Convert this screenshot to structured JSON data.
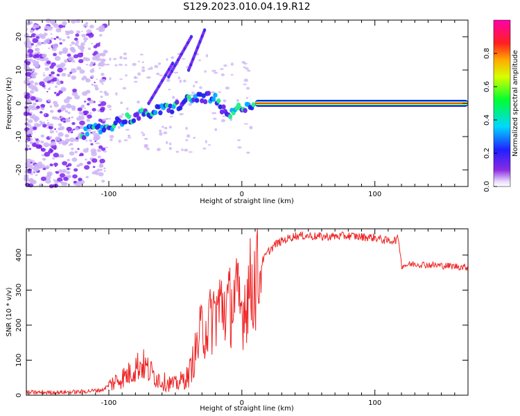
{
  "figure": {
    "title": "S129.2023.010.04.19.R12"
  },
  "colors": {
    "snr_line": "#ee2222",
    "spec_scatter": "#7b22ee",
    "spec_scatter_light": "#cdb4f5",
    "trace_ridge": "#ee1122",
    "axis": "#000000",
    "background": "#ffffff"
  },
  "chart_data": [
    {
      "type": "heatmap",
      "title": "",
      "xlabel": "Height of straight line (km)",
      "ylabel": "Frequency (Hz)",
      "xlim": [
        -162,
        170
      ],
      "ylim": [
        -25,
        25
      ],
      "x_ticks": [
        -100,
        0,
        100
      ],
      "y_ticks": [
        -20,
        -10,
        0,
        10,
        20
      ],
      "colorbar": {
        "label": "Normalized spectral amplitude",
        "range": [
          0.0,
          1.0
        ],
        "ticks": [
          0.0,
          0.2,
          0.4,
          0.6,
          0.8
        ],
        "colormap": "rainbow (violet-blue-cyan-green-yellow-red-magenta)"
      },
      "trace": {
        "x": [
          -120,
          -110,
          -100,
          -90,
          -80,
          -70,
          -60,
          -50,
          -40,
          -30,
          -20,
          -15,
          -10,
          0,
          10,
          20,
          50,
          100,
          150,
          170
        ],
        "y": [
          -9,
          -8,
          -7,
          -5,
          -4,
          -3,
          -2,
          -1,
          1,
          2,
          1,
          -2,
          -4,
          -1,
          0,
          0,
          0,
          0,
          0,
          0
        ]
      },
      "grid": false
    },
    {
      "type": "line",
      "title": "",
      "xlabel": "Height of straight line (km)",
      "ylabel": "SNR (10 * v/v)",
      "xlim": [
        -162,
        170
      ],
      "ylim": [
        0,
        475
      ],
      "x_ticks": [
        -100,
        0,
        100
      ],
      "y_ticks": [
        0,
        100,
        200,
        300,
        400
      ],
      "x": [
        -162,
        -140,
        -120,
        -105,
        -95,
        -85,
        -80,
        -75,
        -70,
        -60,
        -50,
        -40,
        -35,
        -30,
        -25,
        -20,
        -15,
        -10,
        -5,
        0,
        5,
        10,
        15,
        20,
        25,
        30,
        40,
        50,
        60,
        80,
        90,
        100,
        110,
        118,
        120,
        130,
        140,
        150,
        160,
        170
      ],
      "values": [
        8,
        8,
        10,
        15,
        40,
        60,
        80,
        90,
        70,
        40,
        30,
        55,
        120,
        190,
        200,
        240,
        260,
        250,
        280,
        240,
        300,
        330,
        380,
        410,
        430,
        440,
        455,
        455,
        452,
        455,
        452,
        450,
        440,
        445,
        370,
        375,
        372,
        370,
        368,
        365
      ],
      "grid": false
    }
  ]
}
